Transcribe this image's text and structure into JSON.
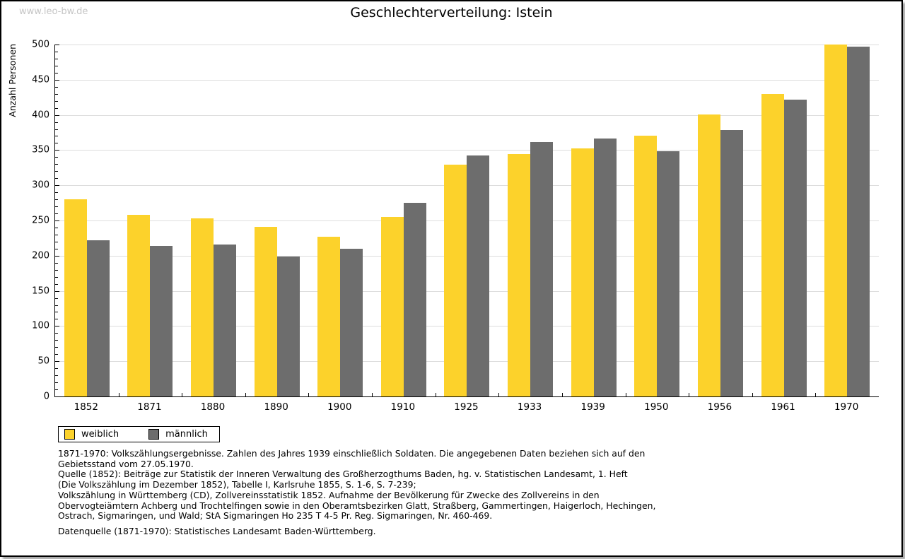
{
  "watermark": "www.leo-bw.de",
  "chart_data": {
    "type": "bar",
    "title": "Geschlechterverteilung: Istein",
    "xlabel": "",
    "ylabel": "Anzahl Personen",
    "ylim": [
      0,
      500
    ],
    "y_major_step": 50,
    "y_minor_step": 10,
    "grid": true,
    "legend_position": "bottom-left",
    "categories": [
      "1852",
      "1871",
      "1880",
      "1890",
      "1900",
      "1910",
      "1925",
      "1933",
      "1939",
      "1950",
      "1956",
      "1961",
      "1970"
    ],
    "series": [
      {
        "name": "weiblich",
        "color": "#fcd22b",
        "values": [
          280,
          258,
          253,
          241,
          227,
          255,
          329,
          344,
          352,
          370,
          401,
          430,
          500
        ]
      },
      {
        "name": "männlich",
        "color": "#6d6d6d",
        "values": [
          222,
          214,
          216,
          199,
          210,
          275,
          342,
          361,
          366,
          348,
          379,
          422,
          497
        ]
      }
    ]
  },
  "footnote": {
    "lines": [
      "1871-1970: Volkszählungsergebnisse. Zahlen des Jahres 1939 einschließlich Soldaten. Die angegebenen Daten beziehen sich auf den",
      "Gebietsstand vom 27.05.1970.",
      "Quelle (1852): Beiträge zur Statistik der Inneren Verwaltung des Großherzogthums Baden, hg. v. Statistischen Landesamt, 1. Heft",
      "(Die Volkszählung im Dezember 1852), Tabelle I, Karlsruhe 1855, S. 1-6, S. 7-239;",
      "Volkszählung in Württemberg (CD), Zollvereinsstatistik 1852. Aufnahme der Bevölkerung für Zwecke des Zollvereins in den",
      "Obervogteiämtern Achberg und Trochtelfingen sowie in den Oberamtsbezirken Glatt, Straßberg, Gammertingen, Haigerloch, Hechingen,",
      "Ostrach, Sigmaringen, und Wald; StA Sigmaringen Ho 235 T 4-5 Pr. Reg. Sigmaringen, Nr. 460-469."
    ],
    "datasource": "Datenquelle (1871-1970): Statistisches Landesamt Baden-Württemberg."
  }
}
